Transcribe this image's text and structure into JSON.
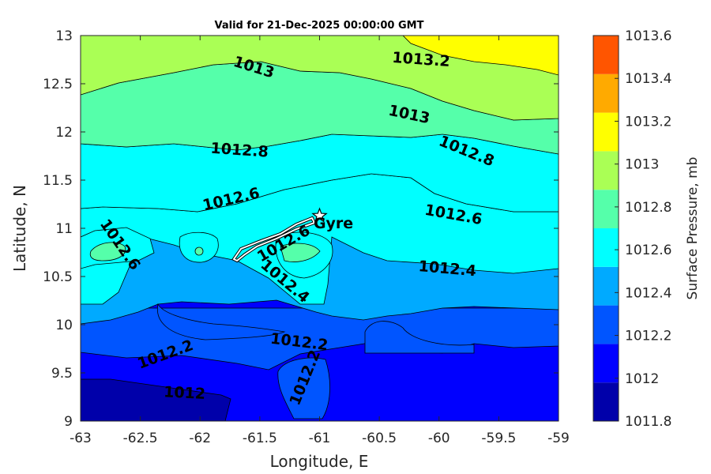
{
  "chart_data": {
    "type": "contour",
    "title": "Valid for 21-Dec-2025 00:00:00 GMT",
    "xlabel": "Longitude, E",
    "ylabel": "Latitude, N",
    "xlim": [
      -63,
      -59
    ],
    "ylim": [
      9,
      13
    ],
    "xticks": [
      "-63",
      "-62.5",
      "-62",
      "-61.5",
      "-61",
      "-60.5",
      "-60",
      "-59.5",
      "-59"
    ],
    "yticks": [
      "9",
      "9.5",
      "10",
      "10.5",
      "11",
      "11.5",
      "12",
      "12.5",
      "13"
    ],
    "colorbar": {
      "label": "Surface Pressure, mb",
      "ticks": [
        "1011.8",
        "1012",
        "1012.2",
        "1012.4",
        "1012.6",
        "1012.8",
        "1013",
        "1013.2",
        "1013.4",
        "1013.6"
      ],
      "colors": [
        "#0000aa",
        "#0000ff",
        "#0055ff",
        "#00aaff",
        "#00ffff",
        "#55ffaa",
        "#aaff55",
        "#ffff00",
        "#ffaa00",
        "#ff5500"
      ]
    },
    "contour_labels": [
      {
        "text": "1013.2",
        "lon": -60.15,
        "lat": 12.75,
        "angle": 4
      },
      {
        "text": "1013",
        "lon": -61.55,
        "lat": 12.67,
        "angle": 17
      },
      {
        "text": "1013",
        "lon": -60.25,
        "lat": 12.18,
        "angle": 12
      },
      {
        "text": "1012.8",
        "lon": -61.67,
        "lat": 11.81,
        "angle": 4
      },
      {
        "text": "1012.8",
        "lon": -59.77,
        "lat": 11.8,
        "angle": 22
      },
      {
        "text": "1012.6",
        "lon": -61.74,
        "lat": 11.3,
        "angle": -13
      },
      {
        "text": "1012.6",
        "lon": -59.88,
        "lat": 11.14,
        "angle": 10
      },
      {
        "text": "1012.6",
        "lon": -62.67,
        "lat": 10.83,
        "angle": 55
      },
      {
        "text": "1012.6",
        "lon": -61.3,
        "lat": 10.84,
        "angle": -30
      },
      {
        "text": "1012.4",
        "lon": -61.29,
        "lat": 10.45,
        "angle": 40
      },
      {
        "text": "1012.4",
        "lon": -59.93,
        "lat": 10.58,
        "angle": 5
      },
      {
        "text": "1012.2",
        "lon": -61.17,
        "lat": 9.82,
        "angle": 7
      },
      {
        "text": "1012.2",
        "lon": -62.29,
        "lat": 9.69,
        "angle": -20
      },
      {
        "text": "1012.2",
        "lon": -61.12,
        "lat": 9.45,
        "angle": -68
      },
      {
        "text": "1012",
        "lon": -62.13,
        "lat": 9.29,
        "angle": 3
      }
    ],
    "annotations": [
      {
        "text": "Gyre",
        "lon": -61.05,
        "lat": 11.0
      }
    ],
    "marker": {
      "type": "star",
      "lon": -61.0,
      "lat": 11.13
    }
  }
}
